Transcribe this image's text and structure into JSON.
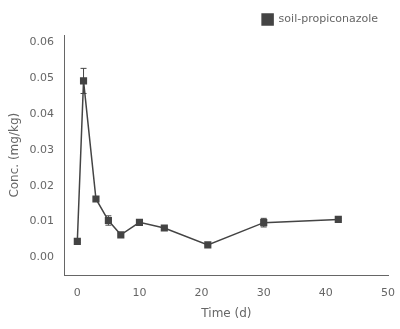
{
  "chart_data": {
    "type": "line",
    "x": [
      0,
      1,
      3,
      5,
      7,
      10,
      14,
      21,
      30,
      42
    ],
    "series": [
      {
        "name": "soil-propiconazole",
        "color": "#444444",
        "marker": "square",
        "line_style": "solid",
        "values": [
          0.0045,
          0.0492,
          0.0163,
          0.0103,
          0.0063,
          0.0098,
          0.0082,
          0.0035,
          0.0097,
          0.0106
        ],
        "yerr": [
          0.0003,
          0.0035,
          0.0004,
          0.0013,
          0.0003,
          0.0003,
          0.0003,
          0.0003,
          0.0012,
          0.0003
        ]
      }
    ],
    "xlabel": "Time (d)",
    "ylabel": "Conc. (mg/kg)",
    "xlim": [
      -2,
      50
    ],
    "ylim": [
      -0.005,
      0.062
    ],
    "xticks": [
      0,
      10,
      20,
      30,
      40,
      50
    ],
    "yticks": [
      {
        "value": 0,
        "label": "0.00"
      },
      {
        "value": 0.01,
        "label": "0.01"
      },
      {
        "value": 0.02,
        "label": "0.02"
      },
      {
        "value": 0.03,
        "label": "0.03"
      },
      {
        "value": 0.04,
        "label": "0.04"
      },
      {
        "value": 0.05,
        "label": "0.05"
      },
      {
        "value": 0.06,
        "label": "0.06"
      }
    ],
    "grid": false,
    "legend": "upper right"
  }
}
